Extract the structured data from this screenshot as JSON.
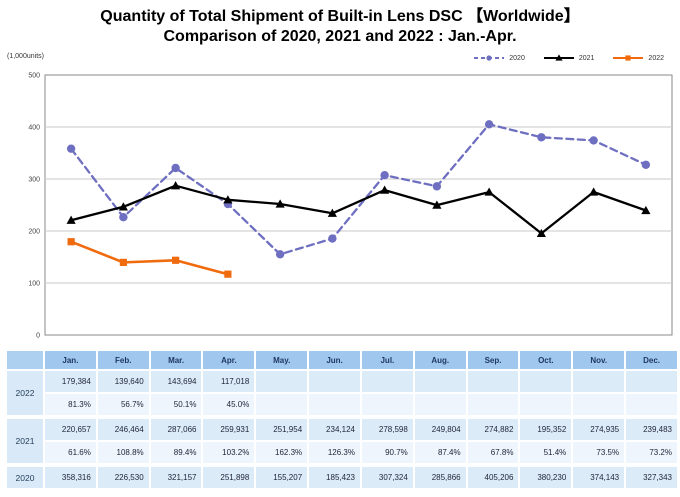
{
  "title": {
    "line1": "Quantity of Total Shipment of Built-in Lens DSC 【Worldwide】",
    "line2": "Comparison of 2020, 2021 and 2022 : Jan.-Apr."
  },
  "chart": {
    "unit_label": "(1,000units)",
    "y_ticks": [
      0,
      100,
      200,
      300,
      400,
      500
    ],
    "grid_color": "#c9c9c9",
    "border_color": "#8a8a8a"
  },
  "chart_data": {
    "type": "line",
    "title": "Quantity of Total Shipment of Built-in Lens DSC 【Worldwide】 Comparison of 2020, 2021 and 2022 : Jan.-Apr.",
    "xlabel": "",
    "ylabel": "(1,000units)",
    "ylim": [
      0,
      500
    ],
    "grid": true,
    "legend_position": "top-right",
    "categories": [
      "Jan.",
      "Feb.",
      "Mar.",
      "Apr.",
      "May.",
      "Jun.",
      "Jul.",
      "Aug.",
      "Sep.",
      "Oct.",
      "Nov.",
      "Dec."
    ],
    "series": [
      {
        "name": "2020",
        "color": "#6f6fc2",
        "style": "dashed",
        "marker": "circle",
        "values": [
          358.316,
          226.53,
          321.157,
          251.898,
          155.207,
          185.423,
          307.324,
          285.866,
          405.206,
          380.23,
          374.143,
          327.343
        ]
      },
      {
        "name": "2021",
        "color": "#000000",
        "style": "solid",
        "marker": "triangle",
        "values": [
          220.657,
          246.464,
          287.066,
          259.931,
          251.954,
          234.124,
          278.598,
          249.804,
          274.882,
          195.352,
          274.935,
          239.483
        ]
      },
      {
        "name": "2022",
        "color": "#f06a0e",
        "style": "solid",
        "marker": "square",
        "values": [
          179.384,
          139.64,
          143.694,
          117.018,
          null,
          null,
          null,
          null,
          null,
          null,
          null,
          null
        ]
      }
    ]
  },
  "table": {
    "months": [
      "Jan.",
      "Feb.",
      "Mar.",
      "Apr.",
      "May.",
      "Jun.",
      "Jul.",
      "Aug.",
      "Sep.",
      "Oct.",
      "Nov.",
      "Dec."
    ],
    "groups": [
      {
        "year": "2022",
        "values": [
          "179,384",
          "139,640",
          "143,694",
          "117,018",
          "",
          "",
          "",
          "",
          "",
          "",
          "",
          ""
        ],
        "percents": [
          "81.3%",
          "56.7%",
          "50.1%",
          "45.0%",
          "",
          "",
          "",
          "",
          "",
          "",
          "",
          ""
        ]
      },
      {
        "year": "2021",
        "values": [
          "220,657",
          "246,464",
          "287,066",
          "259,931",
          "251,954",
          "234,124",
          "278,598",
          "249,804",
          "274,882",
          "195,352",
          "274,935",
          "239,483"
        ],
        "percents": [
          "61.6%",
          "108.8%",
          "89.4%",
          "103.2%",
          "162.3%",
          "126.3%",
          "90.7%",
          "87.4%",
          "67.8%",
          "51.4%",
          "73.5%",
          "73.2%"
        ]
      },
      {
        "year": "2020",
        "values": [
          "358,316",
          "226,530",
          "321,157",
          "251,898",
          "155,207",
          "185,423",
          "307,324",
          "285,866",
          "405,206",
          "380,230",
          "374,143",
          "327,343"
        ],
        "percents": null
      }
    ]
  }
}
